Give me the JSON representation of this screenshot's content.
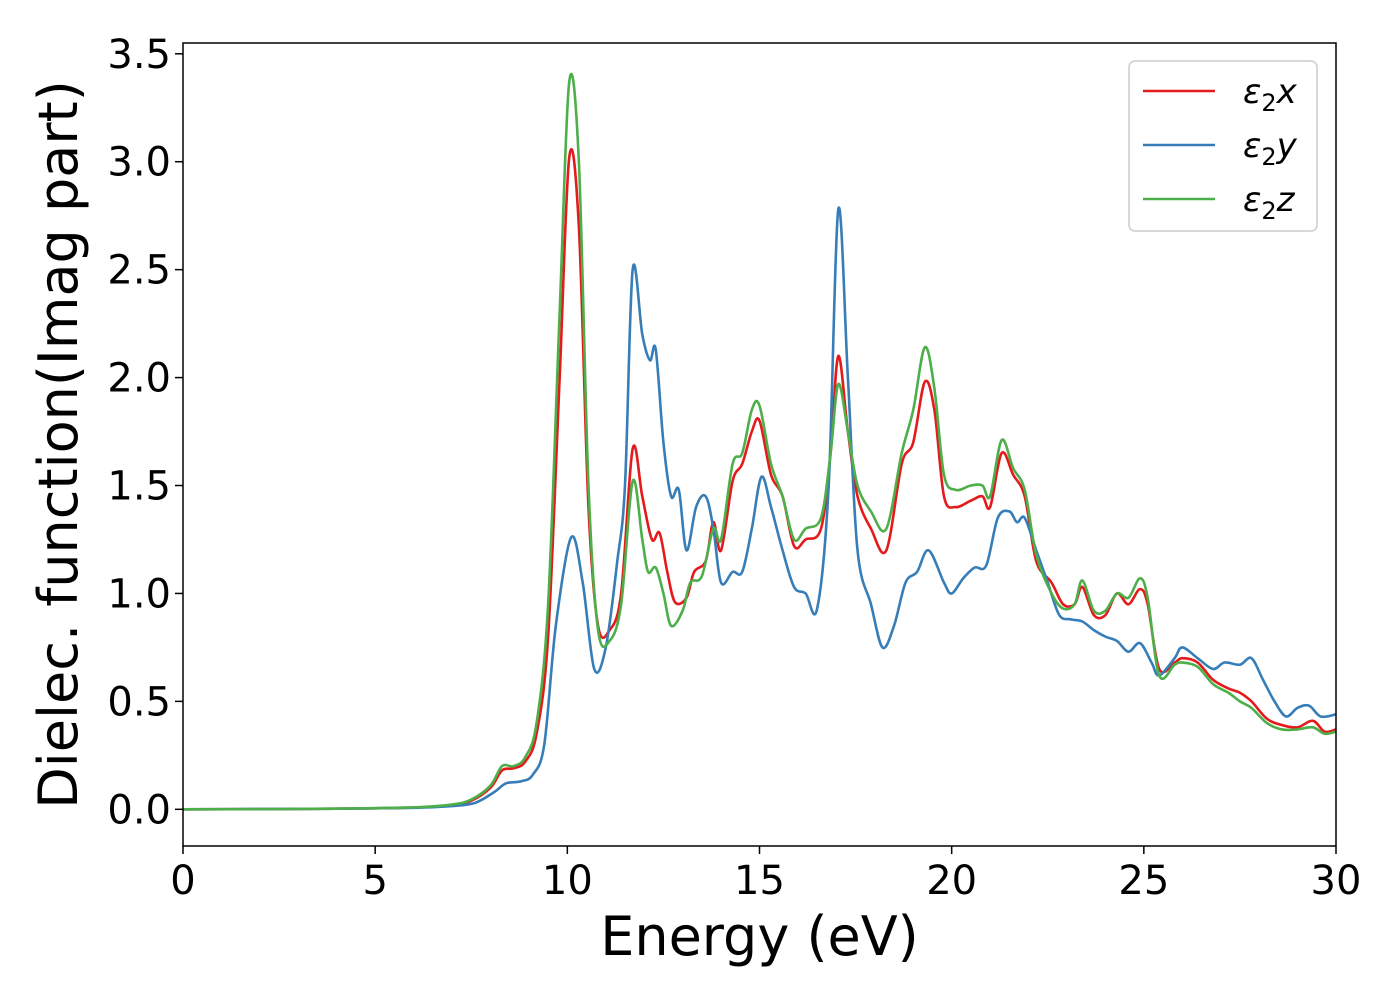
{
  "chart_data": {
    "type": "line",
    "title": "",
    "xlabel": "Energy (eV)",
    "ylabel": "Dielec. function(Imag part)",
    "xlim": [
      0,
      30
    ],
    "ylim": [
      -0.17,
      3.55
    ],
    "xticks": [
      0,
      5,
      10,
      15,
      20,
      25,
      30
    ],
    "yticks": [
      0.0,
      0.5,
      1.0,
      1.5,
      2.0,
      2.5,
      3.0,
      3.5
    ],
    "xtick_labels": [
      "0",
      "5",
      "10",
      "15",
      "20",
      "25",
      "30"
    ],
    "ytick_labels": [
      "0.0",
      "0.5",
      "1.0",
      "1.5",
      "2.0",
      "2.5",
      "3.0",
      "3.5"
    ],
    "grid": false,
    "legend_position": "top-right",
    "series": [
      {
        "name": "ε₂x",
        "legend_base": "ε",
        "legend_sub": "2",
        "legend_var": "x",
        "color": "#e41a1c",
        "points": [
          [
            0,
            0
          ],
          [
            2,
            0.001
          ],
          [
            4,
            0.003
          ],
          [
            6,
            0.008
          ],
          [
            7,
            0.02
          ],
          [
            7.5,
            0.04
          ],
          [
            8,
            0.1
          ],
          [
            8.3,
            0.18
          ],
          [
            8.6,
            0.19
          ],
          [
            8.9,
            0.22
          ],
          [
            9.2,
            0.35
          ],
          [
            9.5,
            0.8
          ],
          [
            9.8,
            2.0
          ],
          [
            10.05,
            3.02
          ],
          [
            10.3,
            2.7
          ],
          [
            10.55,
            1.4
          ],
          [
            10.8,
            0.85
          ],
          [
            11.1,
            0.83
          ],
          [
            11.4,
            1.0
          ],
          [
            11.7,
            1.67
          ],
          [
            11.95,
            1.45
          ],
          [
            12.2,
            1.25
          ],
          [
            12.4,
            1.28
          ],
          [
            12.6,
            1.1
          ],
          [
            12.8,
            0.96
          ],
          [
            13.1,
            0.98
          ],
          [
            13.3,
            1.1
          ],
          [
            13.6,
            1.15
          ],
          [
            13.8,
            1.33
          ],
          [
            14.0,
            1.2
          ],
          [
            14.3,
            1.52
          ],
          [
            14.55,
            1.6
          ],
          [
            14.8,
            1.75
          ],
          [
            15.0,
            1.8
          ],
          [
            15.3,
            1.55
          ],
          [
            15.6,
            1.45
          ],
          [
            15.9,
            1.22
          ],
          [
            16.2,
            1.25
          ],
          [
            16.6,
            1.3
          ],
          [
            16.85,
            1.65
          ],
          [
            17.05,
            2.1
          ],
          [
            17.3,
            1.75
          ],
          [
            17.55,
            1.45
          ],
          [
            17.9,
            1.3
          ],
          [
            18.3,
            1.2
          ],
          [
            18.7,
            1.6
          ],
          [
            19.0,
            1.7
          ],
          [
            19.3,
            1.98
          ],
          [
            19.55,
            1.85
          ],
          [
            19.8,
            1.45
          ],
          [
            20.1,
            1.4
          ],
          [
            20.5,
            1.43
          ],
          [
            20.8,
            1.45
          ],
          [
            21.0,
            1.4
          ],
          [
            21.3,
            1.65
          ],
          [
            21.6,
            1.55
          ],
          [
            21.9,
            1.45
          ],
          [
            22.2,
            1.15
          ],
          [
            22.6,
            1.05
          ],
          [
            22.9,
            0.95
          ],
          [
            23.2,
            0.95
          ],
          [
            23.4,
            1.03
          ],
          [
            23.7,
            0.9
          ],
          [
            24.0,
            0.9
          ],
          [
            24.3,
            1.0
          ],
          [
            24.6,
            0.95
          ],
          [
            24.9,
            1.02
          ],
          [
            25.1,
            0.95
          ],
          [
            25.4,
            0.65
          ],
          [
            25.8,
            0.68
          ],
          [
            26.0,
            0.7
          ],
          [
            26.4,
            0.68
          ],
          [
            26.8,
            0.6
          ],
          [
            27.2,
            0.56
          ],
          [
            27.5,
            0.54
          ],
          [
            27.8,
            0.5
          ],
          [
            28.2,
            0.42
          ],
          [
            28.6,
            0.39
          ],
          [
            29.0,
            0.38
          ],
          [
            29.4,
            0.41
          ],
          [
            29.7,
            0.36
          ],
          [
            30,
            0.37
          ]
        ]
      },
      {
        "name": "ε₂y",
        "legend_base": "ε",
        "legend_sub": "2",
        "legend_var": "y",
        "color": "#377eb8",
        "points": [
          [
            0,
            0
          ],
          [
            2,
            0.001
          ],
          [
            4,
            0.003
          ],
          [
            6,
            0.007
          ],
          [
            7,
            0.015
          ],
          [
            7.6,
            0.03
          ],
          [
            8.1,
            0.08
          ],
          [
            8.4,
            0.12
          ],
          [
            8.8,
            0.13
          ],
          [
            9.1,
            0.16
          ],
          [
            9.4,
            0.3
          ],
          [
            9.7,
            0.85
          ],
          [
            10.1,
            1.26
          ],
          [
            10.4,
            1.05
          ],
          [
            10.7,
            0.65
          ],
          [
            11.0,
            0.75
          ],
          [
            11.3,
            1.15
          ],
          [
            11.5,
            1.5
          ],
          [
            11.7,
            2.5
          ],
          [
            11.95,
            2.2
          ],
          [
            12.15,
            2.08
          ],
          [
            12.3,
            2.13
          ],
          [
            12.5,
            1.7
          ],
          [
            12.7,
            1.45
          ],
          [
            12.9,
            1.48
          ],
          [
            13.1,
            1.2
          ],
          [
            13.35,
            1.4
          ],
          [
            13.6,
            1.45
          ],
          [
            13.8,
            1.3
          ],
          [
            14.0,
            1.05
          ],
          [
            14.3,
            1.1
          ],
          [
            14.55,
            1.1
          ],
          [
            14.8,
            1.3
          ],
          [
            15.05,
            1.54
          ],
          [
            15.3,
            1.4
          ],
          [
            15.6,
            1.2
          ],
          [
            15.9,
            1.03
          ],
          [
            16.2,
            1.0
          ],
          [
            16.5,
            0.93
          ],
          [
            16.8,
            1.5
          ],
          [
            17.05,
            2.78
          ],
          [
            17.3,
            2.0
          ],
          [
            17.55,
            1.2
          ],
          [
            17.9,
            0.95
          ],
          [
            18.2,
            0.75
          ],
          [
            18.5,
            0.85
          ],
          [
            18.8,
            1.05
          ],
          [
            19.1,
            1.1
          ],
          [
            19.4,
            1.2
          ],
          [
            19.8,
            1.05
          ],
          [
            20.0,
            1.0
          ],
          [
            20.3,
            1.07
          ],
          [
            20.6,
            1.12
          ],
          [
            20.9,
            1.13
          ],
          [
            21.2,
            1.35
          ],
          [
            21.5,
            1.38
          ],
          [
            21.7,
            1.33
          ],
          [
            21.9,
            1.35
          ],
          [
            22.2,
            1.2
          ],
          [
            22.5,
            1.05
          ],
          [
            22.8,
            0.9
          ],
          [
            23.1,
            0.88
          ],
          [
            23.4,
            0.87
          ],
          [
            23.7,
            0.83
          ],
          [
            24.0,
            0.8
          ],
          [
            24.3,
            0.78
          ],
          [
            24.6,
            0.73
          ],
          [
            24.9,
            0.77
          ],
          [
            25.2,
            0.68
          ],
          [
            25.4,
            0.62
          ],
          [
            25.8,
            0.7
          ],
          [
            26.0,
            0.75
          ],
          [
            26.4,
            0.7
          ],
          [
            26.8,
            0.65
          ],
          [
            27.1,
            0.68
          ],
          [
            27.5,
            0.67
          ],
          [
            27.8,
            0.7
          ],
          [
            28.1,
            0.6
          ],
          [
            28.4,
            0.5
          ],
          [
            28.7,
            0.43
          ],
          [
            29.0,
            0.47
          ],
          [
            29.3,
            0.48
          ],
          [
            29.6,
            0.43
          ],
          [
            30,
            0.44
          ]
        ]
      },
      {
        "name": "ε₂z",
        "legend_base": "ε",
        "legend_sub": "2",
        "legend_var": "z",
        "color": "#4daf4a",
        "points": [
          [
            0,
            0
          ],
          [
            2,
            0.001
          ],
          [
            4,
            0.003
          ],
          [
            6,
            0.009
          ],
          [
            7,
            0.022
          ],
          [
            7.5,
            0.045
          ],
          [
            8,
            0.11
          ],
          [
            8.3,
            0.2
          ],
          [
            8.6,
            0.2
          ],
          [
            8.9,
            0.24
          ],
          [
            9.2,
            0.4
          ],
          [
            9.5,
            0.95
          ],
          [
            9.8,
            2.3
          ],
          [
            10.05,
            3.37
          ],
          [
            10.3,
            3.0
          ],
          [
            10.55,
            1.5
          ],
          [
            10.8,
            0.83
          ],
          [
            11.1,
            0.78
          ],
          [
            11.4,
            0.95
          ],
          [
            11.7,
            1.52
          ],
          [
            11.95,
            1.25
          ],
          [
            12.1,
            1.1
          ],
          [
            12.3,
            1.12
          ],
          [
            12.5,
            1.0
          ],
          [
            12.7,
            0.85
          ],
          [
            13.0,
            0.92
          ],
          [
            13.2,
            1.05
          ],
          [
            13.5,
            1.08
          ],
          [
            13.8,
            1.3
          ],
          [
            14.0,
            1.25
          ],
          [
            14.3,
            1.6
          ],
          [
            14.55,
            1.65
          ],
          [
            14.8,
            1.85
          ],
          [
            15.0,
            1.87
          ],
          [
            15.3,
            1.6
          ],
          [
            15.6,
            1.45
          ],
          [
            15.9,
            1.25
          ],
          [
            16.2,
            1.3
          ],
          [
            16.6,
            1.35
          ],
          [
            16.85,
            1.65
          ],
          [
            17.05,
            1.97
          ],
          [
            17.3,
            1.75
          ],
          [
            17.55,
            1.5
          ],
          [
            17.9,
            1.38
          ],
          [
            18.3,
            1.3
          ],
          [
            18.7,
            1.65
          ],
          [
            19.0,
            1.85
          ],
          [
            19.3,
            2.14
          ],
          [
            19.55,
            1.95
          ],
          [
            19.8,
            1.55
          ],
          [
            20.1,
            1.48
          ],
          [
            20.5,
            1.5
          ],
          [
            20.8,
            1.5
          ],
          [
            21.0,
            1.45
          ],
          [
            21.3,
            1.71
          ],
          [
            21.6,
            1.58
          ],
          [
            21.9,
            1.48
          ],
          [
            22.2,
            1.18
          ],
          [
            22.6,
            1.0
          ],
          [
            22.9,
            0.93
          ],
          [
            23.2,
            0.95
          ],
          [
            23.4,
            1.06
          ],
          [
            23.7,
            0.92
          ],
          [
            24.0,
            0.92
          ],
          [
            24.3,
            1.0
          ],
          [
            24.6,
            0.98
          ],
          [
            24.9,
            1.07
          ],
          [
            25.1,
            0.98
          ],
          [
            25.4,
            0.62
          ],
          [
            25.8,
            0.67
          ],
          [
            26.0,
            0.68
          ],
          [
            26.4,
            0.66
          ],
          [
            26.8,
            0.58
          ],
          [
            27.2,
            0.54
          ],
          [
            27.5,
            0.5
          ],
          [
            27.8,
            0.47
          ],
          [
            28.2,
            0.4
          ],
          [
            28.6,
            0.37
          ],
          [
            29.0,
            0.37
          ],
          [
            29.4,
            0.38
          ],
          [
            29.7,
            0.35
          ],
          [
            30,
            0.36
          ]
        ]
      }
    ]
  }
}
